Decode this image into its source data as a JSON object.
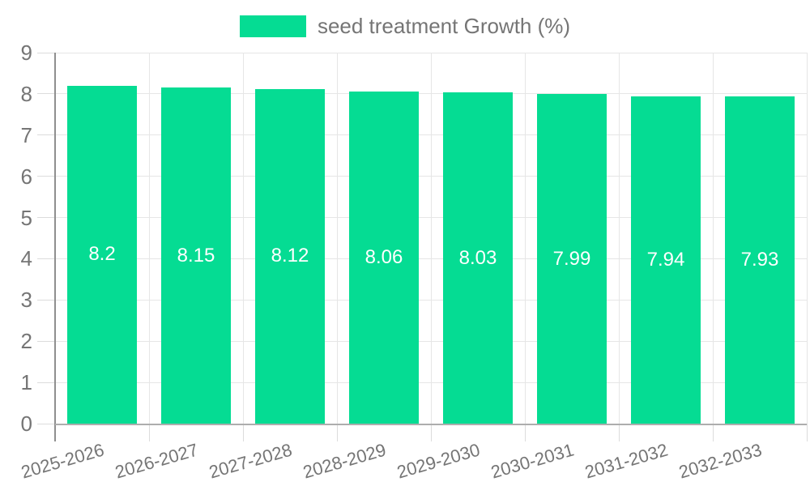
{
  "legend": {
    "items": [
      {
        "label": "seed treatment Growth (%)",
        "color": "#05DC93"
      }
    ],
    "position": "top-center"
  },
  "chart_data": {
    "type": "bar",
    "title": "",
    "series_name": "seed treatment Growth (%)",
    "categories": [
      "2025-2026",
      "2026-2027",
      "2027-2028",
      "2028-2029",
      "2029-2030",
      "2030-2031",
      "2031-2032",
      "2032-2033"
    ],
    "values": [
      8.2,
      8.15,
      8.12,
      8.06,
      8.03,
      7.99,
      7.94,
      7.93
    ],
    "value_labels": [
      "8.2",
      "8.15",
      "8.12",
      "8.06",
      "8.03",
      "7.99",
      "7.94",
      "7.93"
    ],
    "ylim": [
      0,
      9
    ],
    "yticks": [
      0,
      1,
      2,
      3,
      4,
      5,
      6,
      7,
      8,
      9
    ],
    "grid": true,
    "x_label_rotation_deg": -16,
    "legend_position": "top",
    "colors": {
      "bar": "#05DC93",
      "value_label": "#FFFFFF",
      "axis_text": "#757575",
      "gridline": "#E6E6E6",
      "tick": "#DCDCDC",
      "axis_line": "#8F8F8F",
      "baseline": "#ADADAD",
      "background": "#FFFFFF"
    }
  }
}
